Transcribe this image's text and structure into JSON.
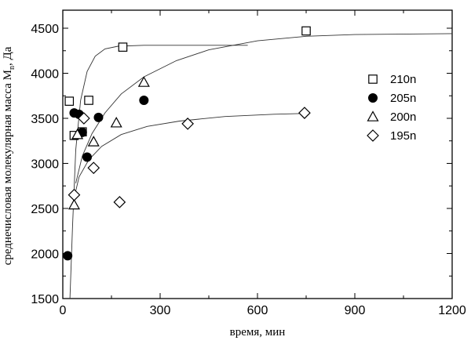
{
  "chart_data": {
    "type": "scatter",
    "title": "",
    "xlabel": "время, мин",
    "ylabel": "среднечисловая молекулярная масса M",
    "ylabel_sub": "n",
    "ylabel_unit": ", Да",
    "xlim": [
      0,
      1200
    ],
    "ylim": [
      1500,
      4700
    ],
    "xticks": [
      0,
      300,
      600,
      900,
      1200
    ],
    "yticks": [
      1500,
      2000,
      2500,
      3000,
      3500,
      4000,
      4500
    ],
    "grid": false,
    "legend_position": "right",
    "series": [
      {
        "name": "210n",
        "marker": "square-open",
        "points": [
          [
            20,
            3690
          ],
          [
            35,
            3310
          ],
          [
            60,
            3350
          ],
          [
            80,
            3700
          ],
          [
            185,
            4290
          ],
          [
            750,
            4470
          ]
        ],
        "fit": [
          [
            22,
            1500
          ],
          [
            30,
            2300
          ],
          [
            40,
            3150
          ],
          [
            55,
            3700
          ],
          [
            75,
            4020
          ],
          [
            100,
            4190
          ],
          [
            130,
            4270
          ],
          [
            170,
            4300
          ],
          [
            250,
            4310
          ],
          [
            400,
            4310
          ],
          [
            570,
            4310
          ]
        ]
      },
      {
        "name": "205n",
        "marker": "circle-filled",
        "points": [
          [
            15,
            1975
          ],
          [
            35,
            3560
          ],
          [
            50,
            3545
          ],
          [
            60,
            3345
          ],
          [
            75,
            3070
          ],
          [
            110,
            3510
          ],
          [
            250,
            3700
          ]
        ]
      },
      {
        "name": "200n",
        "marker": "triangle-open",
        "points": [
          [
            35,
            2540
          ],
          [
            45,
            3320
          ],
          [
            95,
            3240
          ],
          [
            165,
            3450
          ],
          [
            250,
            3900
          ]
        ],
        "fit": [
          [
            40,
            2780
          ],
          [
            60,
            3080
          ],
          [
            90,
            3330
          ],
          [
            130,
            3560
          ],
          [
            180,
            3770
          ],
          [
            250,
            3960
          ],
          [
            350,
            4140
          ],
          [
            450,
            4260
          ],
          [
            600,
            4360
          ],
          [
            750,
            4410
          ],
          [
            900,
            4430
          ],
          [
            1200,
            4440
          ]
        ]
      },
      {
        "name": "195n",
        "marker": "diamond-open",
        "points": [
          [
            35,
            2650
          ],
          [
            65,
            3500
          ],
          [
            95,
            2950
          ],
          [
            175,
            2570
          ],
          [
            385,
            3440
          ],
          [
            745,
            3560
          ]
        ],
        "fit": [
          [
            30,
            2540
          ],
          [
            50,
            2850
          ],
          [
            80,
            3040
          ],
          [
            120,
            3190
          ],
          [
            180,
            3320
          ],
          [
            260,
            3410
          ],
          [
            360,
            3470
          ],
          [
            500,
            3520
          ],
          [
            650,
            3545
          ],
          [
            750,
            3555
          ]
        ]
      }
    ]
  }
}
